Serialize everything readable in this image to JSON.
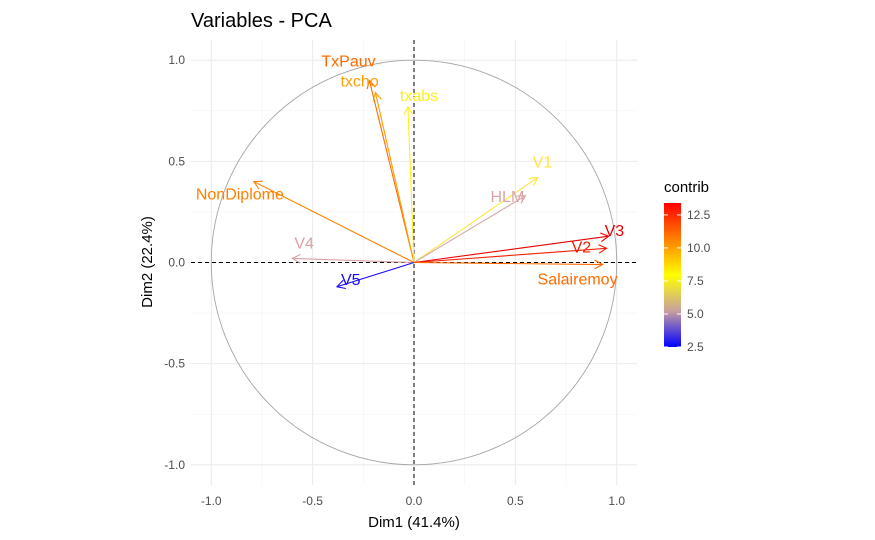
{
  "chart_data": {
    "type": "scatter",
    "title": "Variables - PCA",
    "xlabel": "Dim1 (41.4%)",
    "ylabel": "Dim2 (22.4%)",
    "xlim": [
      -1.1,
      1.1
    ],
    "ylim": [
      -1.1,
      1.1
    ],
    "x_ticks": [
      "-1.0",
      "-0.5",
      "0.0",
      "0.5",
      "1.0"
    ],
    "y_ticks": [
      "-1.0",
      "-0.5",
      "0.0",
      "0.5",
      "1.0"
    ],
    "x_tick_values": [
      -1.0,
      -0.5,
      0.0,
      0.5,
      1.0
    ],
    "y_tick_values": [
      -1.0,
      -0.5,
      0.0,
      0.5,
      1.0
    ],
    "grid": true,
    "unit_circle": true,
    "variables": [
      {
        "name": "TxPauv",
        "x": -0.22,
        "y": 0.9,
        "contrib": 11.5,
        "color": "#ff6a00"
      },
      {
        "name": "txcho",
        "x": -0.19,
        "y": 0.84,
        "contrib": 9.5,
        "color": "#ff9f00"
      },
      {
        "name": "txabs",
        "x": -0.03,
        "y": 0.77,
        "contrib": 7.8,
        "color": "#ffef1a"
      },
      {
        "name": "V1",
        "x": 0.61,
        "y": 0.42,
        "contrib": 8.0,
        "color": "#ffe53a"
      },
      {
        "name": "HLM",
        "x": 0.55,
        "y": 0.33,
        "contrib": 6.0,
        "color": "#d9a7a7"
      },
      {
        "name": "V3",
        "x": 0.96,
        "y": 0.13,
        "contrib": 13.2,
        "color": "#ea0000"
      },
      {
        "name": "V2",
        "x": 0.95,
        "y": 0.07,
        "contrib": 12.7,
        "color": "#f21f00"
      },
      {
        "name": "Salairemoy",
        "x": 0.93,
        "y": -0.01,
        "contrib": 11.5,
        "color": "#ff6a00"
      },
      {
        "name": "NonDiplome",
        "x": -0.79,
        "y": 0.4,
        "contrib": 10.8,
        "color": "#ff8000"
      },
      {
        "name": "V4",
        "x": -0.6,
        "y": 0.02,
        "contrib": 6.0,
        "color": "#d9a0a6"
      },
      {
        "name": "V5",
        "x": -0.38,
        "y": -0.12,
        "contrib": 2.5,
        "color": "#1a0aff"
      }
    ],
    "legend": {
      "title": "contrib",
      "position": "right",
      "labels": [
        "12.5",
        "10.0",
        "7.5",
        "5.0",
        "2.5"
      ],
      "values": [
        12.5,
        10.0,
        7.5,
        5.0,
        2.5
      ],
      "range": [
        2.5,
        13.4
      ],
      "gradient": [
        "#ff0000",
        "#ff7f00",
        "#ffff00",
        "#c8a0a0",
        "#0000ff"
      ]
    }
  }
}
